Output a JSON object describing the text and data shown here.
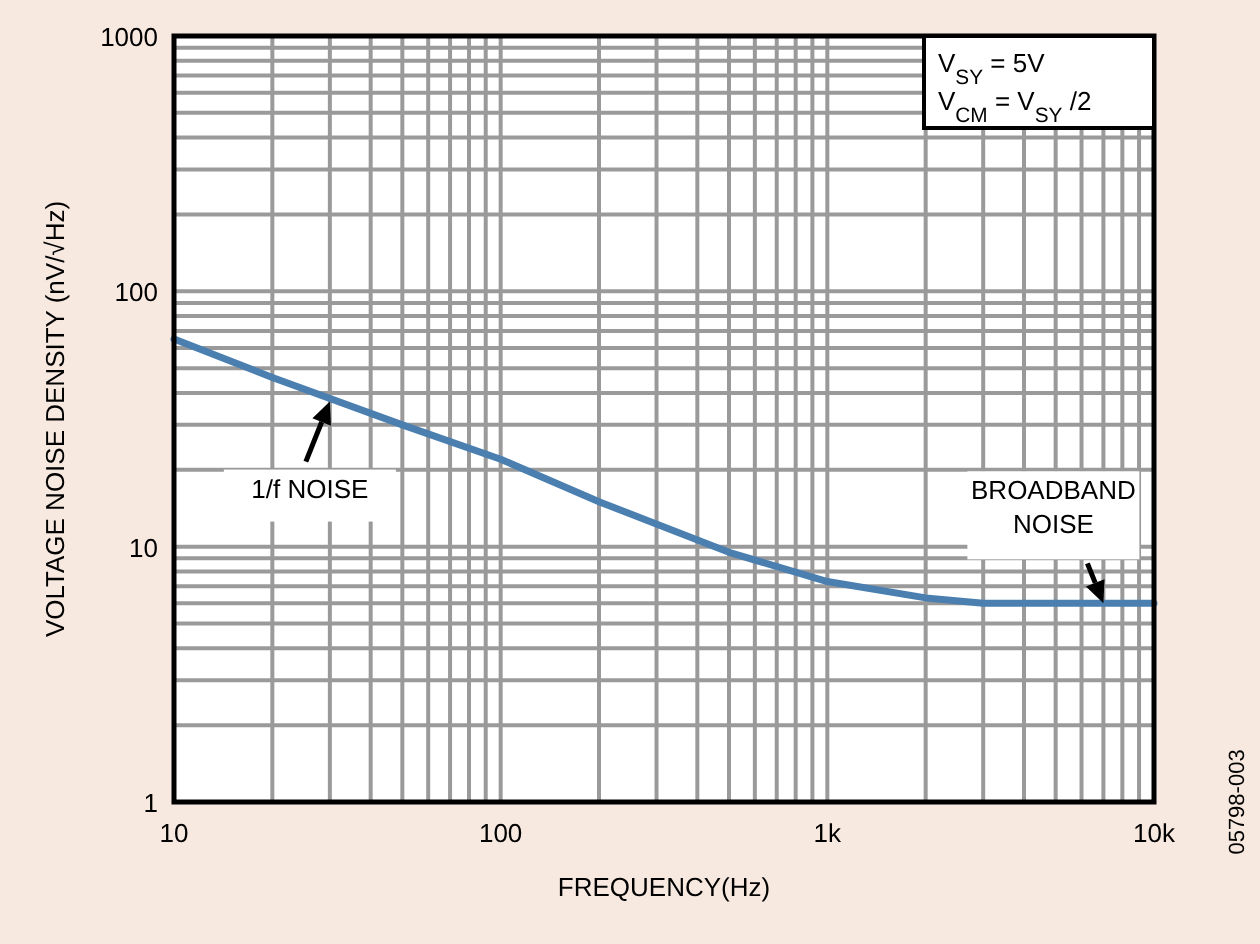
{
  "chart_data": {
    "type": "line",
    "xlabel": "FREQUENCY(Hz)",
    "ylabel": "VOLTAGE NOISE DENSITY (nV/√Hz)",
    "log": "xy",
    "xlim": [
      10,
      10000
    ],
    "ylim": [
      1,
      1000
    ],
    "xticks": [
      10,
      100,
      {
        "value": 1000,
        "label": "1k"
      },
      {
        "value": 10000,
        "label": "10k"
      }
    ],
    "yticks": [
      1,
      10,
      100,
      1000
    ],
    "grid": true,
    "series": [
      {
        "color": "#4a7fb0",
        "x": [
          10,
          20,
          50,
          100,
          200,
          500,
          1000,
          2000,
          3000,
          10000
        ],
        "values": [
          65,
          46,
          30,
          22,
          15,
          9.5,
          7.3,
          6.3,
          6,
          6
        ]
      }
    ],
    "annotations": [
      {
        "text": "1/f NOISE",
        "x": 30,
        "y": 37
      },
      {
        "text": "BROADBAND\nNOISE",
        "x": 7000,
        "y": 6
      },
      "V$_{SY}$ = 5V",
      "V$_{CM}$ = V$_{SY}$ /2",
      "05798-003"
    ]
  }
}
